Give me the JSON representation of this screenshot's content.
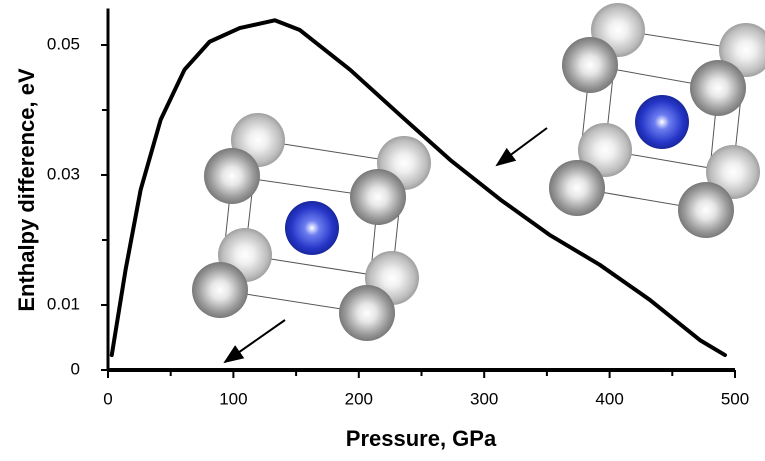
{
  "chart_data": {
    "type": "line",
    "xlabel": "Pressure, GPa",
    "ylabel": "Enthalpy difference, eV",
    "xlim": [
      0,
      500
    ],
    "xticks": [
      0,
      100,
      200,
      300,
      400,
      500
    ],
    "xminorticks": [
      50,
      150,
      250,
      350,
      450
    ],
    "ylim": [
      0,
      0.055
    ],
    "yticks": [
      0,
      0.01,
      0.03,
      0.05
    ],
    "yminorticks": [
      0.02,
      0.04
    ],
    "series": [
      {
        "color": "#000000",
        "x": [
          3,
          14,
          26,
          42,
          61,
          81,
          105,
          133,
          153,
          193,
          233,
          273,
          313,
          352,
          392,
          432,
          472,
          492
        ],
        "values": [
          0.0023,
          0.0154,
          0.0277,
          0.0385,
          0.0462,
          0.0505,
          0.0526,
          0.0538,
          0.0523,
          0.0462,
          0.0392,
          0.0323,
          0.0262,
          0.0208,
          0.0162,
          0.0108,
          0.0046,
          0.0023
        ]
      }
    ]
  }
}
